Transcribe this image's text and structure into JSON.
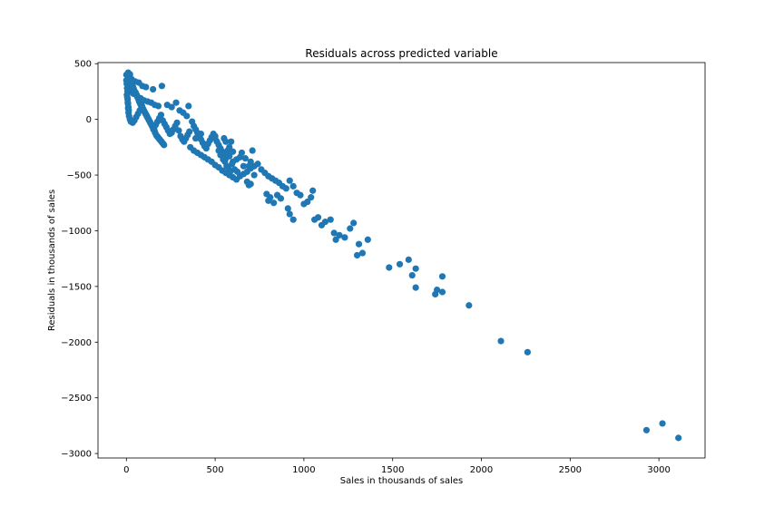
{
  "chart_data": {
    "type": "scatter",
    "title": "Residuals across predicted variable",
    "xlabel": "Sales in thousands of sales",
    "ylabel": "Residuals in thousands of sales",
    "xlim": [
      -160,
      3260
    ],
    "ylim": [
      -3040,
      510
    ],
    "xticks": [
      0,
      500,
      1000,
      1500,
      2000,
      2500,
      3000
    ],
    "xtick_labels": [
      "0",
      "500",
      "1000",
      "1500",
      "2000",
      "2500",
      "3000"
    ],
    "yticks": [
      500,
      0,
      -500,
      -1000,
      -1500,
      -2000,
      -2500,
      -3000
    ],
    "ytick_labels": [
      "500",
      "0",
      "−500",
      "−1000",
      "−1500",
      "−2000",
      "−2500",
      "−3000"
    ],
    "grid": false,
    "marker_color": "#1f77b4",
    "series": [
      {
        "points": [
          [
            10,
            420
          ],
          [
            20,
            405
          ],
          [
            15,
            380
          ],
          [
            30,
            360
          ],
          [
            50,
            340
          ],
          [
            70,
            330
          ],
          [
            90,
            300
          ],
          [
            110,
            290
          ],
          [
            150,
            270
          ],
          [
            200,
            300
          ],
          [
            12,
            300
          ],
          [
            25,
            250
          ],
          [
            40,
            230
          ],
          [
            60,
            210
          ],
          [
            80,
            190
          ],
          [
            100,
            170
          ],
          [
            120,
            160
          ],
          [
            140,
            150
          ],
          [
            160,
            130
          ],
          [
            180,
            120
          ],
          [
            5,
            200
          ],
          [
            8,
            150
          ],
          [
            10,
            100
          ],
          [
            12,
            60
          ],
          [
            15,
            30
          ],
          [
            20,
            0
          ],
          [
            25,
            -20
          ],
          [
            35,
            -30
          ],
          [
            45,
            -10
          ],
          [
            55,
            20
          ],
          [
            65,
            50
          ],
          [
            75,
            80
          ],
          [
            85,
            110
          ],
          [
            95,
            90
          ],
          [
            105,
            60
          ],
          [
            115,
            30
          ],
          [
            125,
            0
          ],
          [
            135,
            -30
          ],
          [
            145,
            -60
          ],
          [
            155,
            -80
          ],
          [
            165,
            -50
          ],
          [
            175,
            -20
          ],
          [
            185,
            10
          ],
          [
            195,
            40
          ],
          [
            205,
            -10
          ],
          [
            215,
            -40
          ],
          [
            225,
            -70
          ],
          [
            235,
            -100
          ],
          [
            245,
            -130
          ],
          [
            255,
            -120
          ],
          [
            265,
            -90
          ],
          [
            275,
            -60
          ],
          [
            285,
            -30
          ],
          [
            295,
            -100
          ],
          [
            305,
            -150
          ],
          [
            315,
            -180
          ],
          [
            325,
            -200
          ],
          [
            335,
            -170
          ],
          [
            345,
            -140
          ],
          [
            355,
            -110
          ],
          [
            230,
            130
          ],
          [
            255,
            110
          ],
          [
            280,
            150
          ],
          [
            300,
            80
          ],
          [
            320,
            60
          ],
          [
            340,
            30
          ],
          [
            350,
            120
          ],
          [
            370,
            -20
          ],
          [
            380,
            -60
          ],
          [
            390,
            -90
          ],
          [
            400,
            -120
          ],
          [
            410,
            -150
          ],
          [
            420,
            -180
          ],
          [
            430,
            -210
          ],
          [
            440,
            -240
          ],
          [
            450,
            -260
          ],
          [
            460,
            -220
          ],
          [
            470,
            -190
          ],
          [
            480,
            -160
          ],
          [
            490,
            -130
          ],
          [
            500,
            -170
          ],
          [
            510,
            -200
          ],
          [
            520,
            -230
          ],
          [
            530,
            -260
          ],
          [
            540,
            -290
          ],
          [
            550,
            -320
          ],
          [
            560,
            -350
          ],
          [
            570,
            -280
          ],
          [
            580,
            -250
          ],
          [
            590,
            -200
          ],
          [
            360,
            -250
          ],
          [
            380,
            -280
          ],
          [
            400,
            -300
          ],
          [
            420,
            -320
          ],
          [
            440,
            -340
          ],
          [
            460,
            -360
          ],
          [
            480,
            -380
          ],
          [
            500,
            -410
          ],
          [
            520,
            -430
          ],
          [
            540,
            -460
          ],
          [
            560,
            -480
          ],
          [
            580,
            -500
          ],
          [
            600,
            -520
          ],
          [
            620,
            -540
          ],
          [
            640,
            -510
          ],
          [
            660,
            -490
          ],
          [
            680,
            -470
          ],
          [
            700,
            -440
          ],
          [
            720,
            -420
          ],
          [
            740,
            -400
          ],
          [
            760,
            -450
          ],
          [
            780,
            -480
          ],
          [
            800,
            -510
          ],
          [
            820,
            -530
          ],
          [
            840,
            -550
          ],
          [
            860,
            -570
          ],
          [
            880,
            -600
          ],
          [
            900,
            -620
          ],
          [
            920,
            -550
          ],
          [
            940,
            -600
          ],
          [
            600,
            -380
          ],
          [
            620,
            -360
          ],
          [
            640,
            -340
          ],
          [
            660,
            -420
          ],
          [
            680,
            -560
          ],
          [
            690,
            -590
          ],
          [
            700,
            -580
          ],
          [
            710,
            -280
          ],
          [
            390,
            -170
          ],
          [
            420,
            -130
          ],
          [
            500,
            -150
          ],
          [
            550,
            -170
          ],
          [
            560,
            -200
          ],
          [
            580,
            -330
          ],
          [
            600,
            -290
          ],
          [
            650,
            -300
          ],
          [
            670,
            -350
          ],
          [
            690,
            -420
          ],
          [
            700,
            -380
          ],
          [
            720,
            -500
          ],
          [
            520,
            -280
          ],
          [
            530,
            -320
          ],
          [
            545,
            -360
          ],
          [
            555,
            -380
          ],
          [
            565,
            -420
          ],
          [
            575,
            -440
          ],
          [
            585,
            -470
          ],
          [
            595,
            -400
          ],
          [
            610,
            -450
          ],
          [
            625,
            -470
          ],
          [
            790,
            -670
          ],
          [
            800,
            -730
          ],
          [
            810,
            -700
          ],
          [
            830,
            -750
          ],
          [
            850,
            -680
          ],
          [
            870,
            -710
          ],
          [
            910,
            -800
          ],
          [
            920,
            -850
          ],
          [
            940,
            -900
          ],
          [
            960,
            -660
          ],
          [
            980,
            -680
          ],
          [
            1000,
            -760
          ],
          [
            1020,
            -740
          ],
          [
            1040,
            -700
          ],
          [
            1060,
            -900
          ],
          [
            1080,
            -880
          ],
          [
            1100,
            -950
          ],
          [
            1120,
            -920
          ],
          [
            1150,
            -900
          ],
          [
            1170,
            -1020
          ],
          [
            1200,
            -1040
          ],
          [
            1230,
            -1060
          ],
          [
            1260,
            -980
          ],
          [
            1280,
            -930
          ],
          [
            1310,
            -1120
          ],
          [
            1330,
            -1200
          ],
          [
            1360,
            -1080
          ],
          [
            1300,
            -1220
          ],
          [
            1180,
            -1080
          ],
          [
            1050,
            -640
          ],
          [
            1480,
            -1330
          ],
          [
            1540,
            -1300
          ],
          [
            1590,
            -1260
          ],
          [
            1610,
            -1400
          ],
          [
            1630,
            -1340
          ],
          [
            1630,
            -1510
          ],
          [
            1740,
            -1570
          ],
          [
            1750,
            -1530
          ],
          [
            1780,
            -1410
          ],
          [
            1780,
            -1550
          ],
          [
            1930,
            -1670
          ],
          [
            2110,
            -1990
          ],
          [
            2260,
            -2090
          ],
          [
            2930,
            -2790
          ],
          [
            3020,
            -2730
          ],
          [
            3110,
            -2860
          ],
          [
            0,
            400
          ],
          [
            0,
            350
          ],
          [
            2,
            320
          ],
          [
            4,
            280
          ],
          [
            6,
            250
          ],
          [
            3,
            220
          ],
          [
            7,
            180
          ],
          [
            9,
            140
          ],
          [
            11,
            110
          ],
          [
            13,
            80
          ],
          [
            18,
            390
          ],
          [
            22,
            370
          ],
          [
            28,
            340
          ],
          [
            32,
            310
          ],
          [
            38,
            290
          ],
          [
            42,
            270
          ],
          [
            48,
            250
          ],
          [
            52,
            240
          ],
          [
            58,
            220
          ],
          [
            62,
            200
          ],
          [
            68,
            180
          ],
          [
            72,
            160
          ],
          [
            78,
            140
          ],
          [
            82,
            130
          ],
          [
            88,
            120
          ],
          [
            92,
            100
          ],
          [
            98,
            80
          ],
          [
            102,
            70
          ],
          [
            108,
            50
          ],
          [
            112,
            40
          ],
          [
            118,
            20
          ],
          [
            122,
            10
          ],
          [
            128,
            -10
          ],
          [
            132,
            -20
          ],
          [
            138,
            -40
          ],
          [
            142,
            -50
          ],
          [
            148,
            -70
          ],
          [
            152,
            -90
          ],
          [
            158,
            -100
          ],
          [
            162,
            -120
          ],
          [
            168,
            -140
          ],
          [
            172,
            -150
          ],
          [
            178,
            -160
          ],
          [
            182,
            -170
          ],
          [
            188,
            -180
          ],
          [
            192,
            -190
          ],
          [
            198,
            -200
          ],
          [
            202,
            -210
          ],
          [
            208,
            -220
          ],
          [
            212,
            -230
          ]
        ]
      }
    ]
  }
}
